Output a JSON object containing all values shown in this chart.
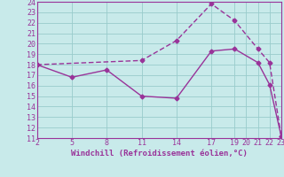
{
  "line1_x": [
    2,
    5,
    8,
    11,
    14,
    17,
    19,
    21,
    22,
    23
  ],
  "line1_y": [
    18,
    16.8,
    17.5,
    15.0,
    14.8,
    19.3,
    19.5,
    18.2,
    16.1,
    11.2
  ],
  "line2_x": [
    2,
    11,
    14,
    17,
    19,
    21,
    22,
    23
  ],
  "line2_y": [
    18,
    18.4,
    20.3,
    23.8,
    22.2,
    19.5,
    18.2,
    11.2
  ],
  "line_color": "#993399",
  "bg_color": "#c8eaea",
  "grid_color": "#99cccc",
  "xlabel": "Windchill (Refroidissement éolien,°C)",
  "xlim": [
    2,
    23
  ],
  "ylim": [
    11,
    24
  ],
  "xticks": [
    2,
    5,
    8,
    11,
    14,
    17,
    19,
    20,
    21,
    22,
    23
  ],
  "yticks": [
    11,
    12,
    13,
    14,
    15,
    16,
    17,
    18,
    19,
    20,
    21,
    22,
    23,
    24
  ],
  "marker": "D",
  "markersize": 2.5,
  "linewidth": 1.0,
  "xlabel_fontsize": 6.5,
  "tick_fontsize": 6.0
}
